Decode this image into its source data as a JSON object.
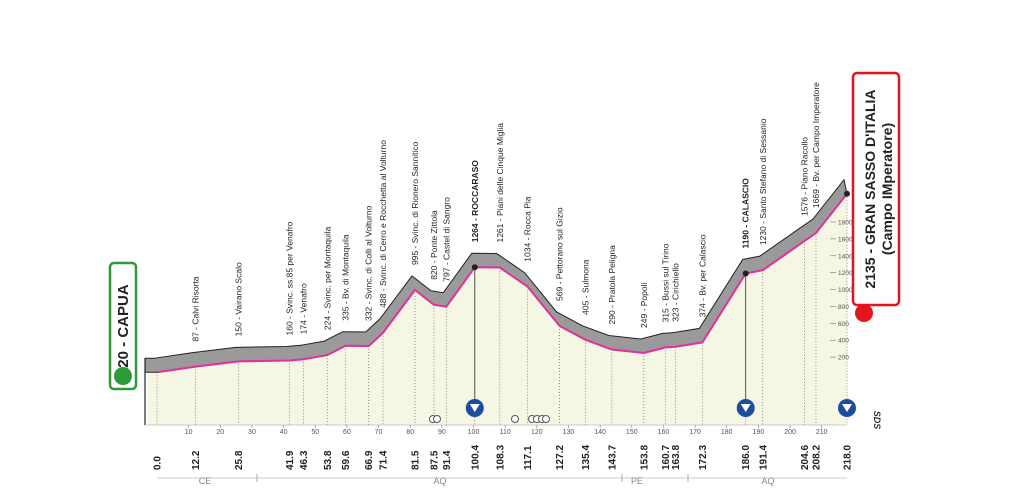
{
  "chart_data": {
    "type": "area",
    "x": [
      {
        "value": 0,
        "label": "0.0"
      },
      12.2,
      25.8,
      41.9,
      46.3,
      53.8,
      59.6,
      66.9,
      71.4,
      81.5,
      87.5,
      91.4,
      100.4,
      108.3,
      117.1,
      127.2,
      135.4,
      143.7,
      153.8,
      160.7,
      163.8,
      172.3,
      {
        "value": 186,
        "label": "186.0"
      },
      191.4,
      204.6,
      208.2,
      {
        "value": 218,
        "label": "218.0"
      }
    ],
    "values": [
      20,
      87,
      150,
      160,
      174,
      224,
      335,
      332,
      488,
      995,
      820,
      797,
      1264,
      1261,
      1034,
      569,
      405,
      290,
      249,
      315,
      323,
      374,
      1190,
      1230,
      1576,
      1669,
      2135
    ],
    "value_labels": [
      "20 - CAPUA",
      "87 - Calvi Risorta",
      "150 - Vairano Scalo",
      "160 - Svinc. ss.85 per Venafro",
      "174 - Venafro",
      "224 - Svinc. per Montaquila",
      "335 - Bv. di Montaquila",
      "332 - Svinc. di Colli al Volturno",
      "488 - Svinc. di Cerro e Rocchetta al Volturno",
      "995 - Svinc. di Rionero Sannitico",
      "820 - Ponte Zittola",
      "797 - Castel di Sangro",
      "1264 - ROCCARASO",
      "1261 - Piani delle Cinque Miglia",
      "1034 - Rocca Pia",
      "569 - Pettorano sul Gizio",
      "405 - Sulmona",
      "290 - Pratola Peligna",
      "249 - Popoli",
      "315 - Bussi sul Tirino",
      "323 - Cirichiello",
      "374 - Bv. per Calascio",
      "1190 - CALASCIO",
      "1230 - Santo Stefano di Sessanio",
      "1576 - Piano Racollo",
      "1669 - Bv. per Campo Imperatore",
      "2135 - GRAN SASSO D'ITALIA"
    ],
    "finish_subtitle": "(Campo IMperatore)",
    "logo": "SDS",
    "regions": [
      "CE",
      "AQ",
      "PE",
      "AQ"
    ],
    "xlim": [
      0,
      218
    ],
    "xticks": [
      10,
      20,
      30,
      40,
      50,
      60,
      70,
      80,
      90,
      100,
      110,
      120,
      130,
      140,
      150,
      160,
      170,
      180,
      190,
      200,
      210
    ],
    "ylim": [
      0,
      1800
    ],
    "yticks": [
      200,
      400,
      600,
      800,
      1000,
      1200,
      1400,
      1600,
      1800
    ],
    "color": "#e0309c"
  }
}
